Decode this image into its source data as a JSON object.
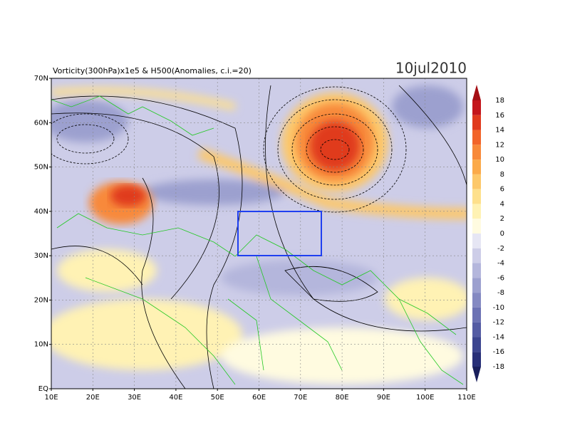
{
  "title": "Vorticity(300hPa)x1e5 & H500(Anomalies, c.i.=20)",
  "date": "10jul2010",
  "lat_labels": [
    "70N",
    "60N",
    "50N",
    "40N",
    "30N",
    "20N",
    "10N",
    "EQ"
  ],
  "lon_labels": [
    "10E",
    "20E",
    "30E",
    "40E",
    "50E",
    "60E",
    "70E",
    "80E",
    "90E",
    "100E",
    "110E"
  ],
  "colorbar": {
    "labels": [
      "18",
      "16",
      "14",
      "12",
      "10",
      "8",
      "6",
      "4",
      "2",
      "0",
      "-2",
      "-4",
      "-6",
      "-8",
      "-10",
      "-12",
      "-14",
      "-16",
      "-18"
    ],
    "colors": [
      "#a50f15",
      "#c4161c",
      "#e03a1e",
      "#f2642a",
      "#f8893a",
      "#fbaa4a",
      "#fdc86a",
      "#fee08c",
      "#fff2b4",
      "#fffbe0",
      "#e6e6f4",
      "#cdcde8",
      "#b4b6dc",
      "#9ca0cf",
      "#8489c2",
      "#6c72b4",
      "#545ca4",
      "#3c4590",
      "#282f78",
      "#1a1f5c"
    ]
  }
}
